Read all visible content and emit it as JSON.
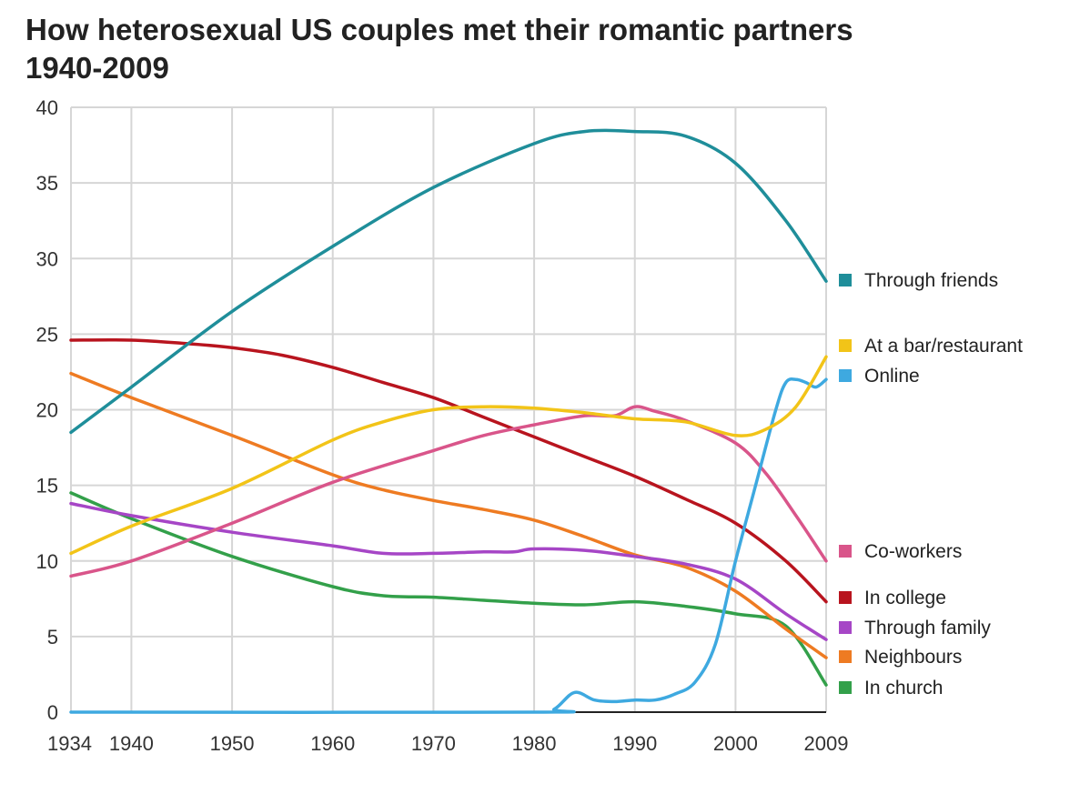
{
  "chart_data": {
    "type": "line",
    "title": "How heterosexual US couples met their romantic partners",
    "subtitle": "1940-2009",
    "xlabel": "",
    "ylabel": "",
    "xlim": [
      1934,
      2009
    ],
    "ylim": [
      0,
      40
    ],
    "x_ticks": [
      1934,
      1940,
      1950,
      1960,
      1970,
      1980,
      1990,
      2000,
      2009
    ],
    "y_ticks": [
      0,
      5,
      10,
      15,
      20,
      25,
      30,
      35,
      40
    ],
    "grid": true,
    "legend_position": "right",
    "series": [
      {
        "name": "Through friends",
        "color": "#1f8e9a",
        "x": [
          1934,
          1940,
          1950,
          1960,
          1970,
          1980,
          1985,
          1990,
          1995,
          2000,
          2005,
          2009
        ],
        "y": [
          18.5,
          21.5,
          26.5,
          30.8,
          34.7,
          37.6,
          38.4,
          38.4,
          38.1,
          36.3,
          32.5,
          28.5
        ]
      },
      {
        "name": "At a bar/restaurant",
        "color": "#f2c418",
        "x": [
          1934,
          1940,
          1950,
          1960,
          1965,
          1970,
          1975,
          1980,
          1985,
          1990,
          1995,
          2000,
          2003,
          2006,
          2009
        ],
        "y": [
          10.5,
          12.3,
          14.8,
          18.0,
          19.2,
          20.0,
          20.2,
          20.1,
          19.8,
          19.4,
          19.2,
          18.3,
          18.7,
          20.2,
          23.5
        ]
      },
      {
        "name": "Online",
        "color": "#3ea9e0",
        "x": [
          1934,
          1980,
          1982,
          1984,
          1986,
          1988,
          1990,
          1992,
          1994,
          1996,
          1998,
          2000,
          2002,
          2004,
          2005,
          2006,
          2007,
          2008,
          2009
        ],
        "y": [
          0,
          0,
          0.2,
          1.3,
          0.8,
          0.7,
          0.8,
          0.8,
          1.2,
          2.0,
          4.5,
          10.0,
          15.0,
          20.0,
          21.8,
          22.0,
          21.8,
          21.5,
          22.0
        ]
      },
      {
        "name": "Co-workers",
        "color": "#d9558a",
        "x": [
          1934,
          1940,
          1950,
          1960,
          1970,
          1975,
          1980,
          1985,
          1988,
          1990,
          1992,
          1995,
          2000,
          2003,
          2006,
          2009
        ],
        "y": [
          9.0,
          10.0,
          12.5,
          15.2,
          17.3,
          18.3,
          19.0,
          19.6,
          19.6,
          20.2,
          19.9,
          19.3,
          17.8,
          15.8,
          13.0,
          10.0
        ]
      },
      {
        "name": "In college",
        "color": "#b8141e",
        "x": [
          1934,
          1940,
          1945,
          1950,
          1955,
          1960,
          1965,
          1970,
          1975,
          1980,
          1985,
          1990,
          1995,
          2000,
          2005,
          2009
        ],
        "y": [
          24.6,
          24.6,
          24.4,
          24.1,
          23.6,
          22.8,
          21.8,
          20.8,
          19.5,
          18.2,
          16.9,
          15.6,
          14.1,
          12.5,
          10.0,
          7.3
        ]
      },
      {
        "name": "Through family",
        "color": "#a646c6",
        "x": [
          1934,
          1940,
          1950,
          1960,
          1965,
          1970,
          1975,
          1978,
          1980,
          1985,
          1990,
          1995,
          2000,
          2005,
          2009
        ],
        "y": [
          13.8,
          13.0,
          11.9,
          11.0,
          10.5,
          10.5,
          10.6,
          10.6,
          10.8,
          10.7,
          10.3,
          9.8,
          8.8,
          6.5,
          4.8
        ]
      },
      {
        "name": "Neighbours",
        "color": "#ee7b22",
        "x": [
          1934,
          1940,
          1950,
          1960,
          1965,
          1970,
          1975,
          1980,
          1985,
          1990,
          1995,
          2000,
          2005,
          2009
        ],
        "y": [
          22.4,
          20.8,
          18.3,
          15.7,
          14.7,
          14.0,
          13.4,
          12.7,
          11.6,
          10.4,
          9.6,
          8.0,
          5.5,
          3.6
        ]
      },
      {
        "name": "In church",
        "color": "#33a04a",
        "x": [
          1934,
          1940,
          1950,
          1960,
          1965,
          1970,
          1975,
          1980,
          1985,
          1990,
          1995,
          2000,
          2005,
          2009
        ],
        "y": [
          14.5,
          12.8,
          10.3,
          8.3,
          7.7,
          7.6,
          7.4,
          7.2,
          7.1,
          7.3,
          7.0,
          6.5,
          5.7,
          1.8
        ]
      }
    ]
  }
}
